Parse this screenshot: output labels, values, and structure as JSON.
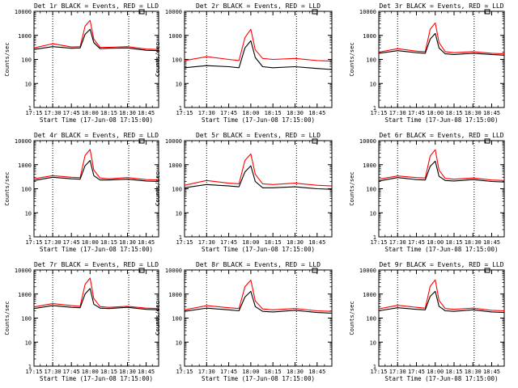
{
  "page": {
    "colors": {
      "background": "#ffffff",
      "axes": "#000000",
      "events": "#000000",
      "lld": "#ff0000"
    }
  },
  "chart_data": [
    {
      "type": "line",
      "title": "Det 1r BLACK = Events, RED = LLD",
      "xlabel": "Start Time (17-Jun-08 17:15:00)",
      "ylabel": "Counts/sec",
      "y_scale": "log",
      "ylim": [
        1,
        10000
      ],
      "yticks": [
        "1",
        "10",
        "100",
        "1000",
        "10000"
      ],
      "xticks": [
        "17:15",
        "17:30",
        "17:45",
        "18:00",
        "18:15",
        "18:30",
        "18:45"
      ],
      "vlines": [
        "17:30",
        "18:31"
      ],
      "series": [
        {
          "name": "Events",
          "color": "#000000",
          "x": [
            "17:15",
            "17:30",
            "17:45",
            "17:52",
            "17:56",
            "18:00",
            "18:03",
            "18:08",
            "18:15",
            "18:30",
            "18:45",
            "18:55"
          ],
          "y": [
            260,
            340,
            290,
            300,
            1100,
            1800,
            500,
            280,
            290,
            300,
            240,
            230
          ]
        },
        {
          "name": "LLD",
          "color": "#ff0000",
          "x": [
            "17:15",
            "17:30",
            "17:45",
            "17:52",
            "17:56",
            "18:00",
            "18:03",
            "18:08",
            "18:15",
            "18:30",
            "18:45",
            "18:55"
          ],
          "y": [
            300,
            450,
            330,
            340,
            2400,
            4200,
            700,
            320,
            320,
            340,
            270,
            260
          ]
        }
      ]
    },
    {
      "type": "line",
      "title": "Det 2r BLACK = Events, RED = LLD",
      "xlabel": "Start Time (17-Jun-08 17:15:00)",
      "ylabel": "Counts/sec",
      "y_scale": "log",
      "ylim": [
        1,
        10000
      ],
      "yticks": [
        "1",
        "10",
        "100",
        "1000",
        "10000"
      ],
      "xticks": [
        "17:15",
        "17:30",
        "17:45",
        "18:00",
        "18:15",
        "18:30",
        "18:45"
      ],
      "vlines": [
        "17:30",
        "18:31"
      ],
      "series": [
        {
          "name": "Events",
          "color": "#000000",
          "x": [
            "17:15",
            "17:30",
            "17:45",
            "17:52",
            "17:56",
            "18:00",
            "18:03",
            "18:08",
            "18:15",
            "18:30",
            "18:45",
            "18:55"
          ],
          "y": [
            45,
            55,
            50,
            45,
            300,
            600,
            120,
            50,
            45,
            50,
            42,
            38
          ]
        },
        {
          "name": "LLD",
          "color": "#ff0000",
          "x": [
            "17:15",
            "17:30",
            "17:45",
            "17:52",
            "17:56",
            "18:00",
            "18:03",
            "18:08",
            "18:15",
            "18:30",
            "18:45",
            "18:55"
          ],
          "y": [
            90,
            130,
            100,
            90,
            800,
            1800,
            250,
            110,
            100,
            110,
            90,
            85
          ]
        }
      ]
    },
    {
      "type": "line",
      "title": "Det 3r BLACK = Events, RED = LLD",
      "xlabel": "Start Time (17-Jun-08 17:15:00)",
      "ylabel": "Counts/sec",
      "y_scale": "log",
      "ylim": [
        1,
        10000
      ],
      "yticks": [
        "1",
        "10",
        "100",
        "1000",
        "10000"
      ],
      "xticks": [
        "17:15",
        "17:30",
        "17:45",
        "18:00",
        "18:15",
        "18:30",
        "18:45"
      ],
      "vlines": [
        "17:30",
        "18:31"
      ],
      "series": [
        {
          "name": "Events",
          "color": "#000000",
          "x": [
            "17:15",
            "17:30",
            "17:45",
            "17:52",
            "17:56",
            "18:00",
            "18:03",
            "18:08",
            "18:15",
            "18:30",
            "18:45",
            "18:55"
          ],
          "y": [
            180,
            230,
            190,
            180,
            700,
            1200,
            300,
            170,
            160,
            180,
            160,
            150
          ]
        },
        {
          "name": "LLD",
          "color": "#ff0000",
          "x": [
            "17:15",
            "17:30",
            "17:45",
            "17:52",
            "17:56",
            "18:00",
            "18:03",
            "18:08",
            "18:15",
            "18:30",
            "18:45",
            "18:55"
          ],
          "y": [
            200,
            280,
            220,
            210,
            1800,
            3300,
            500,
            210,
            190,
            210,
            180,
            170
          ]
        }
      ]
    },
    {
      "type": "line",
      "title": "Det 4r BLACK = Events, RED = LLD",
      "xlabel": "Start Time (17-Jun-08 17:15:00)",
      "ylabel": "Counts/sec",
      "y_scale": "log",
      "ylim": [
        1,
        10000
      ],
      "yticks": [
        "1",
        "10",
        "100",
        "1000",
        "10000"
      ],
      "xticks": [
        "17:15",
        "17:30",
        "17:45",
        "18:00",
        "18:15",
        "18:30",
        "18:45"
      ],
      "vlines": [
        "17:30",
        "18:31"
      ],
      "series": [
        {
          "name": "Events",
          "color": "#000000",
          "x": [
            "17:15",
            "17:30",
            "17:45",
            "17:52",
            "17:56",
            "18:00",
            "18:03",
            "18:08",
            "18:15",
            "18:30",
            "18:45",
            "18:55"
          ],
          "y": [
            220,
            300,
            260,
            250,
            900,
            1500,
            350,
            230,
            230,
            250,
            210,
            200
          ]
        },
        {
          "name": "LLD",
          "color": "#ff0000",
          "x": [
            "17:15",
            "17:30",
            "17:45",
            "17:52",
            "17:56",
            "18:00",
            "18:03",
            "18:08",
            "18:15",
            "18:30",
            "18:45",
            "18:55"
          ],
          "y": [
            260,
            350,
            300,
            290,
            2400,
            4300,
            600,
            280,
            260,
            290,
            240,
            230
          ]
        }
      ]
    },
    {
      "type": "line",
      "title": "Det 5r BLACK = Events, RED = LLD",
      "xlabel": "Start Time (17-Jun-08 17:15:00)",
      "ylabel": "Counts/sec",
      "y_scale": "log",
      "ylim": [
        1,
        10000
      ],
      "yticks": [
        "1",
        "10",
        "100",
        "1000",
        "10000"
      ],
      "xticks": [
        "17:15",
        "17:30",
        "17:45",
        "18:00",
        "18:15",
        "18:30",
        "18:45"
      ],
      "vlines": [
        "17:30",
        "18:31"
      ],
      "series": [
        {
          "name": "Events",
          "color": "#000000",
          "x": [
            "17:15",
            "17:30",
            "17:45",
            "17:52",
            "17:56",
            "18:00",
            "18:03",
            "18:08",
            "18:15",
            "18:30",
            "18:45",
            "18:55"
          ],
          "y": [
            110,
            150,
            130,
            120,
            500,
            900,
            200,
            110,
            110,
            120,
            100,
            95
          ]
        },
        {
          "name": "LLD",
          "color": "#ff0000",
          "x": [
            "17:15",
            "17:30",
            "17:45",
            "17:52",
            "17:56",
            "18:00",
            "18:03",
            "18:08",
            "18:15",
            "18:30",
            "18:45",
            "18:55"
          ],
          "y": [
            140,
            220,
            170,
            160,
            1500,
            2800,
            400,
            160,
            150,
            170,
            140,
            130
          ]
        }
      ]
    },
    {
      "type": "line",
      "title": "Det 6r BLACK = Events, RED = LLD",
      "xlabel": "Start Time (17-Jun-08 17:15:00)",
      "ylabel": "Counts/sec",
      "y_scale": "log",
      "ylim": [
        1,
        10000
      ],
      "yticks": [
        "1",
        "10",
        "100",
        "1000",
        "10000"
      ],
      "xticks": [
        "17:15",
        "17:30",
        "17:45",
        "18:00",
        "18:15",
        "18:30",
        "18:45"
      ],
      "vlines": [
        "17:30",
        "18:31"
      ],
      "series": [
        {
          "name": "Events",
          "color": "#000000",
          "x": [
            "17:15",
            "17:30",
            "17:45",
            "17:52",
            "17:56",
            "18:00",
            "18:03",
            "18:08",
            "18:15",
            "18:30",
            "18:45",
            "18:55"
          ],
          "y": [
            210,
            290,
            240,
            230,
            850,
            1400,
            330,
            220,
            210,
            240,
            200,
            190
          ]
        },
        {
          "name": "LLD",
          "color": "#ff0000",
          "x": [
            "17:15",
            "17:30",
            "17:45",
            "17:52",
            "17:56",
            "18:00",
            "18:03",
            "18:08",
            "18:15",
            "18:30",
            "18:45",
            "18:55"
          ],
          "y": [
            250,
            340,
            290,
            280,
            2300,
            4200,
            600,
            270,
            250,
            280,
            230,
            220
          ]
        }
      ]
    },
    {
      "type": "line",
      "title": "Det 7r BLACK = Events, RED = LLD",
      "xlabel": "Start Time (17-Jun-08 17:15:00)",
      "ylabel": "Counts/sec",
      "y_scale": "log",
      "ylim": [
        1,
        10000
      ],
      "yticks": [
        "1",
        "10",
        "100",
        "1000",
        "10000"
      ],
      "xticks": [
        "17:15",
        "17:30",
        "17:45",
        "18:00",
        "18:15",
        "18:30",
        "18:45"
      ],
      "vlines": [
        "17:30",
        "18:31"
      ],
      "series": [
        {
          "name": "Events",
          "color": "#000000",
          "x": [
            "17:15",
            "17:30",
            "17:45",
            "17:52",
            "17:56",
            "18:00",
            "18:03",
            "18:08",
            "18:15",
            "18:30",
            "18:45",
            "18:55"
          ],
          "y": [
            250,
            330,
            280,
            270,
            1000,
            1700,
            380,
            260,
            250,
            280,
            230,
            220
          ]
        },
        {
          "name": "LLD",
          "color": "#ff0000",
          "x": [
            "17:15",
            "17:30",
            "17:45",
            "17:52",
            "17:56",
            "18:00",
            "18:03",
            "18:08",
            "18:15",
            "18:30",
            "18:45",
            "18:55"
          ],
          "y": [
            290,
            400,
            330,
            310,
            2500,
            4600,
            650,
            300,
            280,
            310,
            260,
            250
          ]
        }
      ]
    },
    {
      "type": "line",
      "title": "Det 8r BLACK = Events, RED = LLD",
      "xlabel": "Start Time (17-Jun-08 17:15:00)",
      "ylabel": "Counts/sec",
      "y_scale": "log",
      "ylim": [
        1,
        10000
      ],
      "yticks": [
        "1",
        "10",
        "100",
        "1000",
        "10000"
      ],
      "xticks": [
        "17:15",
        "17:30",
        "17:45",
        "18:00",
        "18:15",
        "18:30",
        "18:45"
      ],
      "vlines": [
        "17:30",
        "18:31"
      ],
      "series": [
        {
          "name": "Events",
          "color": "#000000",
          "x": [
            "17:15",
            "17:30",
            "17:45",
            "17:52",
            "17:56",
            "18:00",
            "18:03",
            "18:08",
            "18:15",
            "18:30",
            "18:45",
            "18:55"
          ],
          "y": [
            190,
            260,
            220,
            200,
            750,
            1300,
            300,
            190,
            180,
            210,
            170,
            160
          ]
        },
        {
          "name": "LLD",
          "color": "#ff0000",
          "x": [
            "17:15",
            "17:30",
            "17:45",
            "17:52",
            "17:56",
            "18:00",
            "18:03",
            "18:08",
            "18:15",
            "18:30",
            "18:45",
            "18:55"
          ],
          "y": [
            220,
            330,
            270,
            250,
            2000,
            3800,
            520,
            240,
            220,
            250,
            200,
            190
          ]
        }
      ]
    },
    {
      "type": "line",
      "title": "Det 9r BLACK = Events, RED = LLD",
      "xlabel": "Start Time (17-Jun-08 17:15:00)",
      "ylabel": "Counts/sec",
      "y_scale": "log",
      "ylim": [
        1,
        10000
      ],
      "yticks": [
        "1",
        "10",
        "100",
        "1000",
        "10000"
      ],
      "xticks": [
        "17:15",
        "17:30",
        "17:45",
        "18:00",
        "18:15",
        "18:30",
        "18:45"
      ],
      "vlines": [
        "17:30",
        "18:31"
      ],
      "series": [
        {
          "name": "Events",
          "color": "#000000",
          "x": [
            "17:15",
            "17:30",
            "17:45",
            "17:52",
            "17:56",
            "18:00",
            "18:03",
            "18:08",
            "18:15",
            "18:30",
            "18:45",
            "18:55"
          ],
          "y": [
            200,
            270,
            230,
            220,
            800,
            1300,
            310,
            200,
            190,
            220,
            180,
            170
          ]
        },
        {
          "name": "LLD",
          "color": "#ff0000",
          "x": [
            "17:15",
            "17:30",
            "17:45",
            "17:52",
            "17:56",
            "18:00",
            "18:03",
            "18:08",
            "18:15",
            "18:30",
            "18:45",
            "18:55"
          ],
          "y": [
            240,
            340,
            280,
            260,
            2100,
            3900,
            540,
            250,
            230,
            260,
            210,
            200
          ]
        }
      ]
    }
  ]
}
